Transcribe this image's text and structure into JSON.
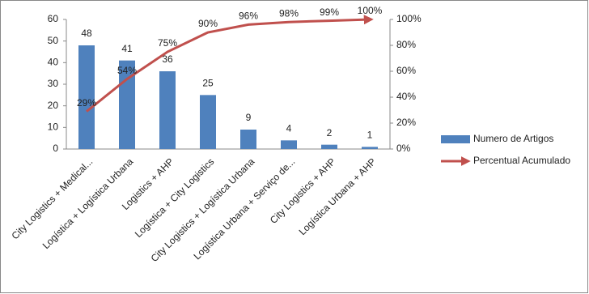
{
  "chart_data": {
    "type": "bar",
    "categories": [
      "City Logistics + Medical...",
      "Logística + Logística Urbana",
      "Logistics + AHP",
      "Logística + City Logistics",
      "City Logistics + Logística Urbana",
      "Logística Urbana + Serviço de...",
      "City Logistics + AHP",
      "Logística Urbana + AHP"
    ],
    "series": [
      {
        "name": "Numero de Artigos",
        "color": "#4f81bd",
        "values": [
          48,
          41,
          36,
          25,
          9,
          4,
          2,
          1
        ]
      },
      {
        "name": "Percentual Acumulado",
        "color": "#c0504d",
        "type": "line",
        "axis": "y2",
        "values": [
          29,
          54,
          75,
          90,
          96,
          98,
          99,
          100
        ],
        "value_labels": [
          "29%",
          "54%",
          "75%",
          "90%",
          "96%",
          "98%",
          "99%",
          "100%"
        ]
      }
    ],
    "ylim": [
      0,
      60
    ],
    "yticks": [
      0,
      10,
      20,
      30,
      40,
      50,
      60
    ],
    "y2lim": [
      0,
      100
    ],
    "y2ticks": [
      {
        "value": 0,
        "label": "0%"
      },
      {
        "value": 20,
        "label": "20%"
      },
      {
        "value": 40,
        "label": "40%"
      },
      {
        "value": 60,
        "label": "60%"
      },
      {
        "value": 80,
        "label": "80%"
      },
      {
        "value": 100,
        "label": "100%"
      }
    ],
    "legend": "right"
  }
}
